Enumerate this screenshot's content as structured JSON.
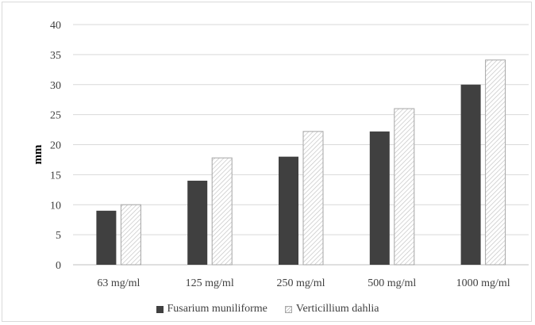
{
  "chart_data": {
    "type": "bar",
    "categories": [
      "63 mg/ml",
      "125 mg/ml",
      "250 mg/ml",
      "500 mg/ml",
      "1000 mg/ml"
    ],
    "series": [
      {
        "name": "Fusarium muniliforme",
        "values": [
          9,
          14,
          18,
          22.2,
          30
        ],
        "color": "#404040"
      },
      {
        "name": "Verticillium dahlia",
        "values": [
          10,
          17.8,
          22.2,
          26,
          34.1
        ],
        "color": "#ffffff"
      }
    ],
    "ylabel": "mm",
    "xlabel": "",
    "ylim": [
      0,
      40
    ],
    "yticks": [
      0,
      5,
      10,
      15,
      20,
      25,
      30,
      35,
      40
    ],
    "grid": true,
    "legend_position": "bottom"
  }
}
